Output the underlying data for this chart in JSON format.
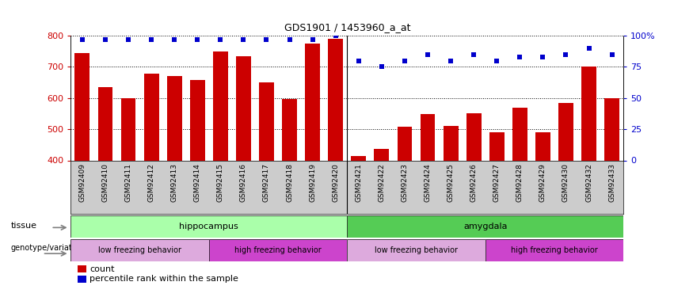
{
  "title": "GDS1901 / 1453960_a_at",
  "samples": [
    "GSM92409",
    "GSM92410",
    "GSM92411",
    "GSM92412",
    "GSM92413",
    "GSM92414",
    "GSM92415",
    "GSM92416",
    "GSM92417",
    "GSM92418",
    "GSM92419",
    "GSM92420",
    "GSM92421",
    "GSM92422",
    "GSM92423",
    "GSM92424",
    "GSM92425",
    "GSM92426",
    "GSM92427",
    "GSM92428",
    "GSM92429",
    "GSM92430",
    "GSM92432",
    "GSM92433"
  ],
  "counts": [
    745,
    635,
    600,
    678,
    670,
    658,
    750,
    735,
    650,
    597,
    775,
    790,
    415,
    438,
    507,
    548,
    510,
    550,
    490,
    570,
    490,
    585,
    700,
    600
  ],
  "percentiles": [
    97,
    97,
    97,
    97,
    97,
    97,
    97,
    97,
    97,
    97,
    97,
    100,
    80,
    75,
    80,
    85,
    80,
    85,
    80,
    83,
    83,
    85,
    90,
    85
  ],
  "ylim_left": [
    400,
    800
  ],
  "ylim_right": [
    0,
    100
  ],
  "yticks_left": [
    400,
    500,
    600,
    700,
    800
  ],
  "yticks_right": [
    0,
    25,
    50,
    75,
    100
  ],
  "bar_color": "#cc0000",
  "dot_color": "#0000cc",
  "bg_label_color": "#cccccc",
  "tissue_hippocampus_color": "#aaffaa",
  "tissue_amygdala_color": "#55cc55",
  "genotype_groups": [
    {
      "label": "low freezing behavior",
      "start": 0,
      "end": 5,
      "color": "#ddaadd"
    },
    {
      "label": "high freezing behavior",
      "start": 6,
      "end": 11,
      "color": "#cc44cc"
    },
    {
      "label": "low freezing behavior",
      "start": 12,
      "end": 17,
      "color": "#ddaadd"
    },
    {
      "label": "high freezing behavior",
      "start": 18,
      "end": 23,
      "color": "#cc44cc"
    }
  ],
  "n_hippo": 12,
  "n_amyg": 12
}
